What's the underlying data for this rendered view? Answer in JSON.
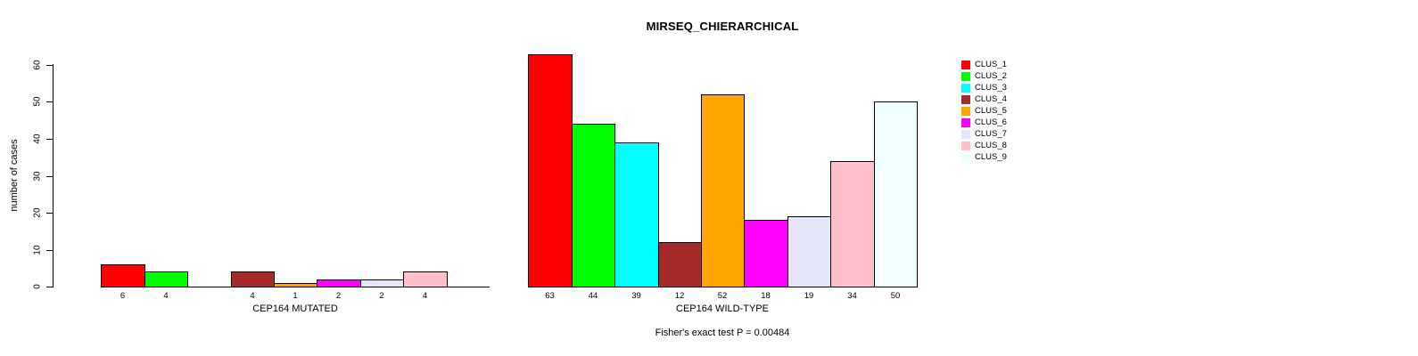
{
  "title": "MIRSEQ_CHIERARCHICAL",
  "y_axis": {
    "label": "number of cases",
    "ticks": [
      0,
      10,
      20,
      30,
      40,
      50,
      60
    ]
  },
  "footer": {
    "text": "Fisher's exact test P = 0.00484"
  },
  "cluster_colors": [
    "#FF0000",
    "#00FF00",
    "#00FFFF",
    "#A52A2A",
    "#FFA500",
    "#FF00FF",
    "#E6E6FA",
    "#FFC0CB",
    "#F0FFFF"
  ],
  "chart_data": [
    {
      "type": "bar",
      "panel": "CEP164 MUTATED",
      "xlabel": "CEP164 MUTATED",
      "ylabel": "number of cases",
      "ylim": [
        0,
        60
      ],
      "grid": false,
      "categories": [
        "CLUS_1",
        "CLUS_2",
        "CLUS_3",
        "CLUS_4",
        "CLUS_5",
        "CLUS_6",
        "CLUS_7",
        "CLUS_8",
        "CLUS_9"
      ],
      "values": [
        6,
        4,
        0,
        4,
        1,
        2,
        2,
        4,
        0
      ],
      "bar_labels": [
        "6",
        "4",
        "",
        "4",
        "1",
        "2",
        "2",
        "4",
        ""
      ],
      "colors": [
        "#FF0000",
        "#00FF00",
        "#00FFFF",
        "#A52A2A",
        "#FFA500",
        "#FF00FF",
        "#E6E6FA",
        "#FFC0CB",
        "#F0FFFF"
      ]
    },
    {
      "type": "bar",
      "panel": "CEP164 WILD-TYPE",
      "xlabel": "CEP164 WILD-TYPE",
      "ylabel": "number of cases",
      "ylim": [
        0,
        60
      ],
      "grid": false,
      "categories": [
        "CLUS_1",
        "CLUS_2",
        "CLUS_3",
        "CLUS_4",
        "CLUS_5",
        "CLUS_6",
        "CLUS_7",
        "CLUS_8",
        "CLUS_9"
      ],
      "values": [
        63,
        44,
        39,
        12,
        52,
        18,
        19,
        34,
        50
      ],
      "bar_labels": [
        "63",
        "44",
        "39",
        "12",
        "52",
        "18",
        "19",
        "34",
        "50"
      ],
      "colors": [
        "#FF0000",
        "#00FF00",
        "#00FFFF",
        "#A52A2A",
        "#FFA500",
        "#FF00FF",
        "#E6E6FA",
        "#FFC0CB",
        "#F0FFFF"
      ]
    }
  ],
  "legend": {
    "position": "right",
    "entries": [
      {
        "label": "CLUS_1",
        "color": "#FF0000"
      },
      {
        "label": "CLUS_2",
        "color": "#00FF00"
      },
      {
        "label": "CLUS_3",
        "color": "#00FFFF"
      },
      {
        "label": "CLUS_4",
        "color": "#A52A2A"
      },
      {
        "label": "CLUS_5",
        "color": "#FFA500"
      },
      {
        "label": "CLUS_6",
        "color": "#FF00FF"
      },
      {
        "label": "CLUS_7",
        "color": "#E6E6FA"
      },
      {
        "label": "CLUS_8",
        "color": "#FFC0CB"
      },
      {
        "label": "CLUS_9",
        "color": "#F0FFFF"
      }
    ]
  }
}
